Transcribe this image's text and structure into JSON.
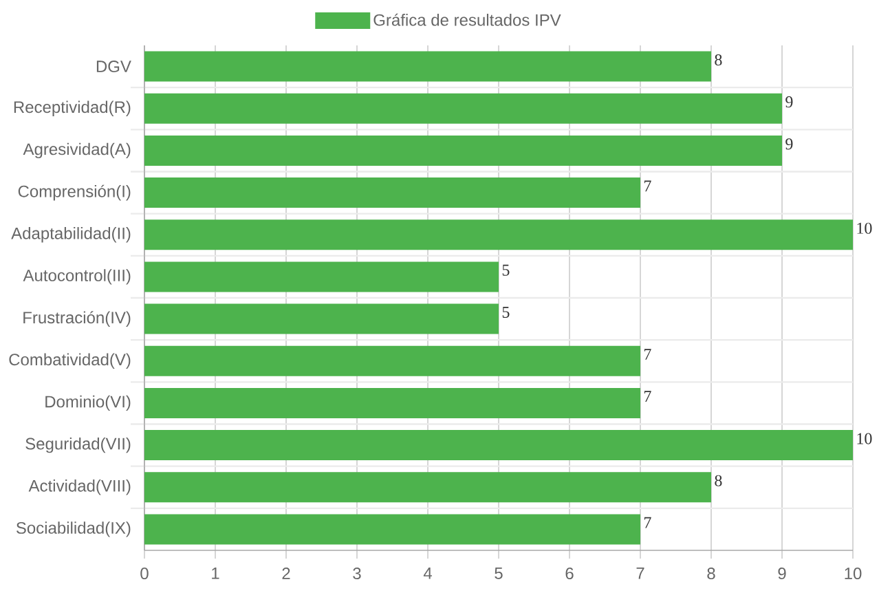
{
  "chart_data": {
    "type": "bar",
    "orientation": "horizontal",
    "categories": [
      "DGV",
      "Receptividad(R)",
      "Agresividad(A)",
      "Comprensión(I)",
      "Adaptabilidad(II)",
      "Autocontrol(III)",
      "Frustración(IV)",
      "Combatividad(V)",
      "Dominio(VI)",
      "Seguridad(VII)",
      "Actividad(VIII)",
      "Sociabilidad(IX)"
    ],
    "series": [
      {
        "name": "Gráfica de resultados IPV",
        "color": "#4db34d",
        "values": [
          8,
          9,
          9,
          7,
          10,
          5,
          5,
          7,
          7,
          10,
          8,
          7
        ]
      }
    ],
    "xlim": [
      0,
      10
    ],
    "xticks": [
      0,
      1,
      2,
      3,
      4,
      5,
      6,
      7,
      8,
      9,
      10
    ],
    "grid": true,
    "legend": "top",
    "data_labels": true
  }
}
